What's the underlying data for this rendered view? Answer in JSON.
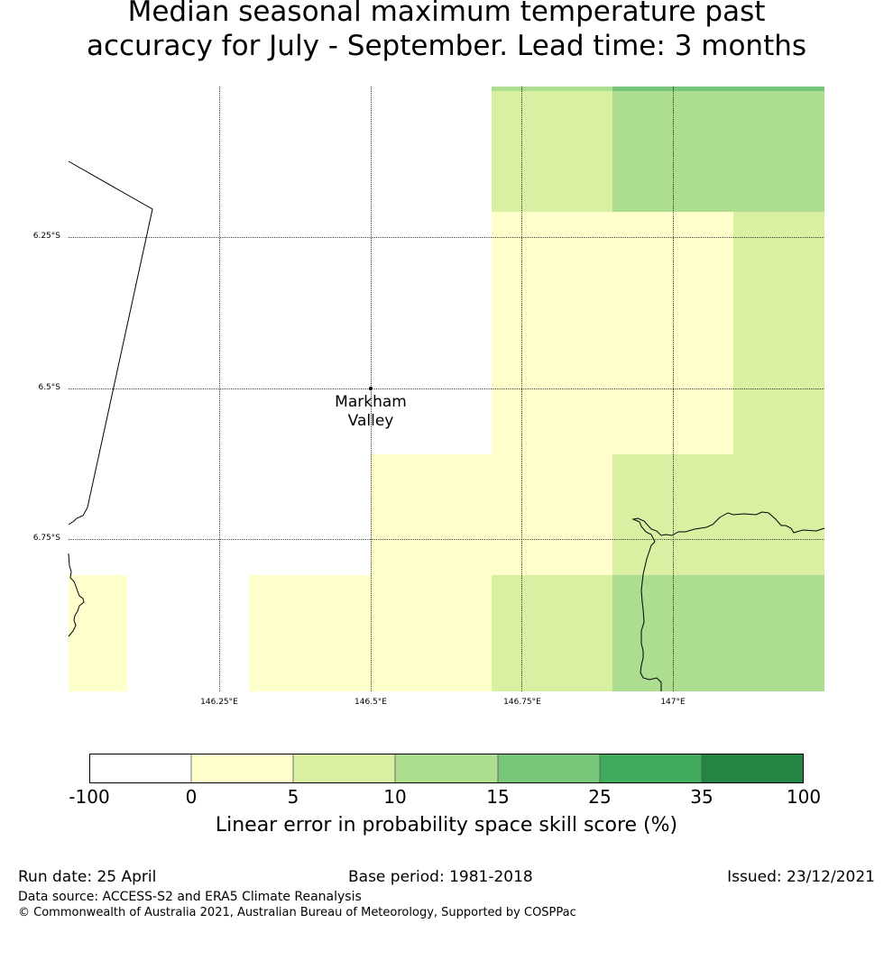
{
  "title_line1": "Median seasonal maximum temperature past",
  "title_line2": "accuracy for July - September. Lead time: 3 months",
  "map": {
    "lon_labels": [
      "146.25°E",
      "146.5°E",
      "146.75°E",
      "147°E"
    ],
    "lat_labels": [
      "6.25°S",
      "6.5°S",
      "6.75°S"
    ],
    "place_name_line1": "Markham",
    "place_name_line2": "Valley"
  },
  "colorbar": {
    "title": "Linear error in probability space skill score (%)",
    "boundaries": [
      "-100",
      "0",
      "5",
      "10",
      "15",
      "25",
      "35",
      "100"
    ],
    "colors": [
      "#ffffff",
      "#ffffcc",
      "#d9f0a3",
      "#addd8e",
      "#78c679",
      "#41ab5d",
      "#238443"
    ]
  },
  "footer": {
    "run_date": "Run date: 25 April",
    "base_period": "Base period: 1981-2018",
    "issued": "Issued: 23/12/2021",
    "data_source": "Data source: ACCESS-S2 and ERA5 Climate Reanalysis",
    "copyright": "© Commonwealth of Australia 2021, Australian Bureau of Meteorology, Supported by COSPPac"
  }
}
